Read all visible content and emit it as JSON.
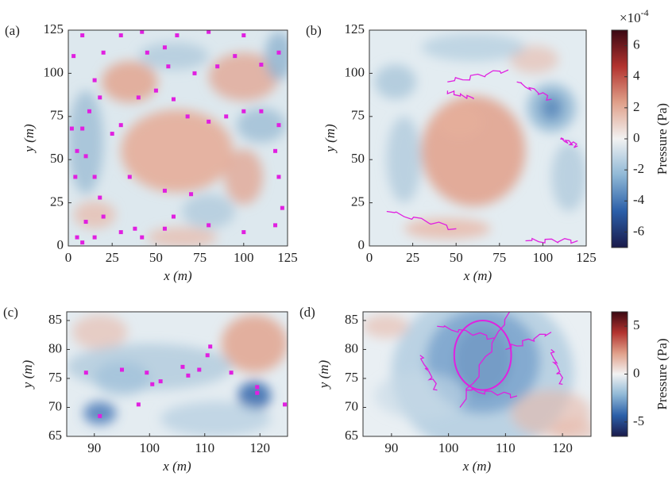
{
  "chart_data": [
    {
      "type": "scatter",
      "panel_label": "(a)",
      "x_label": "x (m)",
      "y_label": "y (m)",
      "color": "#e020e0",
      "xlim": [
        0,
        125
      ],
      "ylim": [
        0,
        125
      ],
      "xticks": [
        0,
        25,
        50,
        75,
        100,
        125
      ],
      "yticks": [
        0,
        25,
        50,
        75,
        100,
        125
      ],
      "x": [
        8,
        3,
        30,
        42,
        20,
        15,
        18,
        12,
        8,
        2,
        5,
        10,
        4,
        15,
        18,
        20,
        10,
        5,
        8,
        15,
        30,
        38,
        42,
        55,
        80,
        100,
        118,
        122,
        120,
        118,
        120,
        110,
        100,
        90,
        80,
        68,
        60,
        50,
        40,
        30,
        25,
        35,
        55,
        70,
        60,
        72,
        85,
        95,
        110,
        120,
        55,
        57,
        45,
        62,
        80,
        100
      ],
      "y": [
        122,
        110,
        122,
        124,
        112,
        96,
        86,
        78,
        68,
        68,
        55,
        52,
        40,
        40,
        28,
        17,
        14,
        5,
        2,
        5,
        8,
        10,
        5,
        10,
        12,
        8,
        12,
        22,
        40,
        55,
        70,
        78,
        78,
        75,
        72,
        75,
        85,
        90,
        86,
        70,
        65,
        40,
        32,
        30,
        17,
        100,
        104,
        110,
        105,
        112,
        115,
        104,
        112,
        122,
        124,
        122
      ]
    },
    {
      "type": "heatmap",
      "panel_label": "(b)",
      "x_label": "x (m)",
      "y_label": "y (m)",
      "xlim": [
        0,
        125
      ],
      "ylim": [
        0,
        125
      ],
      "xticks": [
        0,
        25,
        50,
        75,
        100,
        125
      ],
      "yticks": [
        0,
        25,
        50,
        75,
        100,
        125
      ],
      "colorbar": {
        "label": "Pressure (Pa)",
        "multiplier": "×10",
        "exponent": "-4",
        "lim": [
          -7,
          7
        ],
        "ticks": [
          -6,
          -4,
          -2,
          0,
          2,
          4,
          6
        ],
        "colormap": [
          "#1a1a4a",
          "#2b5fa8",
          "#8fb8d6",
          "#f2f2f2",
          "#e0a08a",
          "#b2332f",
          "#3a0812"
        ]
      }
    },
    {
      "type": "scatter",
      "panel_label": "(c)",
      "x_label": "x (m)",
      "y_label": "y (m)",
      "color": "#e020e0",
      "xlim": [
        85,
        125
      ],
      "ylim": [
        65,
        86.5
      ],
      "xticks": [
        90,
        100,
        110,
        120
      ],
      "yticks": [
        65,
        70,
        75,
        80,
        85
      ],
      "x": [
        88.5,
        91,
        95,
        98,
        99.5,
        100.5,
        102,
        106,
        107,
        109,
        110.5,
        111,
        114.8,
        119.5,
        119.5,
        124.5
      ],
      "y": [
        76,
        68.5,
        76.5,
        70.5,
        76,
        74,
        74.5,
        77,
        75.5,
        76.5,
        79,
        80.5,
        76,
        73.5,
        72.5,
        70.5
      ]
    },
    {
      "type": "heatmap",
      "panel_label": "(d)",
      "x_label": "x (m)",
      "y_label": "y (m)",
      "xlim": [
        85,
        125
      ],
      "ylim": [
        65,
        86.5
      ],
      "xticks": [
        90,
        100,
        110,
        120
      ],
      "yticks": [
        65,
        70,
        75,
        80,
        85
      ],
      "colorbar": {
        "label": "Pressure (Pa)",
        "lim": [
          -6.5,
          6.5
        ],
        "ticks": [
          -5,
          0,
          5
        ],
        "colormap": [
          "#1a1a4a",
          "#2b5fa8",
          "#8fb8d6",
          "#f2f2f2",
          "#e0a08a",
          "#b2332f",
          "#3a0812"
        ]
      }
    }
  ]
}
